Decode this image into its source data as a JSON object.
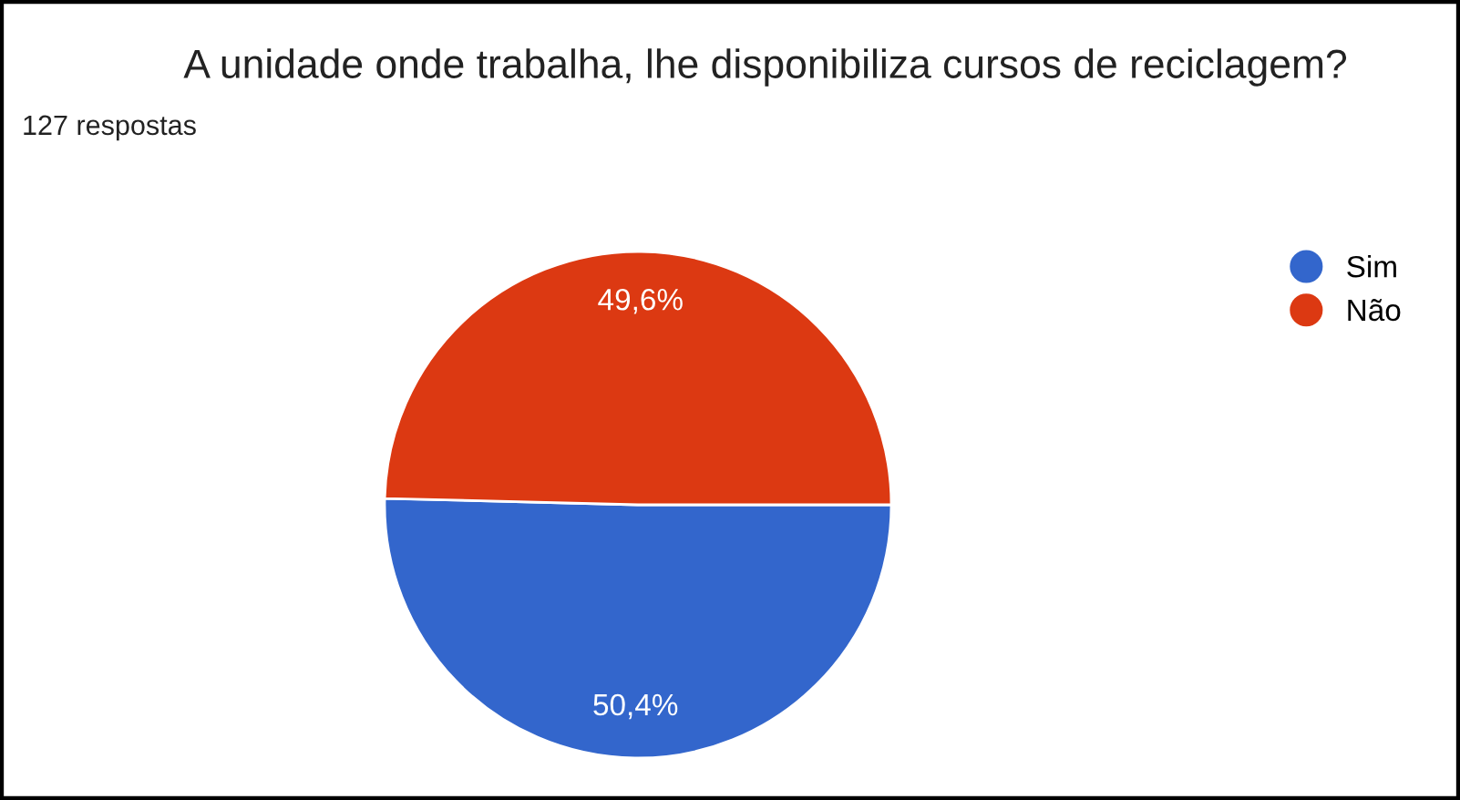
{
  "chart_data": {
    "type": "pie",
    "title": "A unidade onde trabalha, lhe disponibiliza cursos de reciclagem?",
    "subtitle": "127 respostas",
    "categories": [
      "Sim",
      "Não"
    ],
    "values": [
      50.4,
      49.6
    ],
    "colors": [
      "#3366cc",
      "#dc3912"
    ],
    "value_labels": [
      "50,4%",
      "49,6%"
    ],
    "legend": "right"
  }
}
